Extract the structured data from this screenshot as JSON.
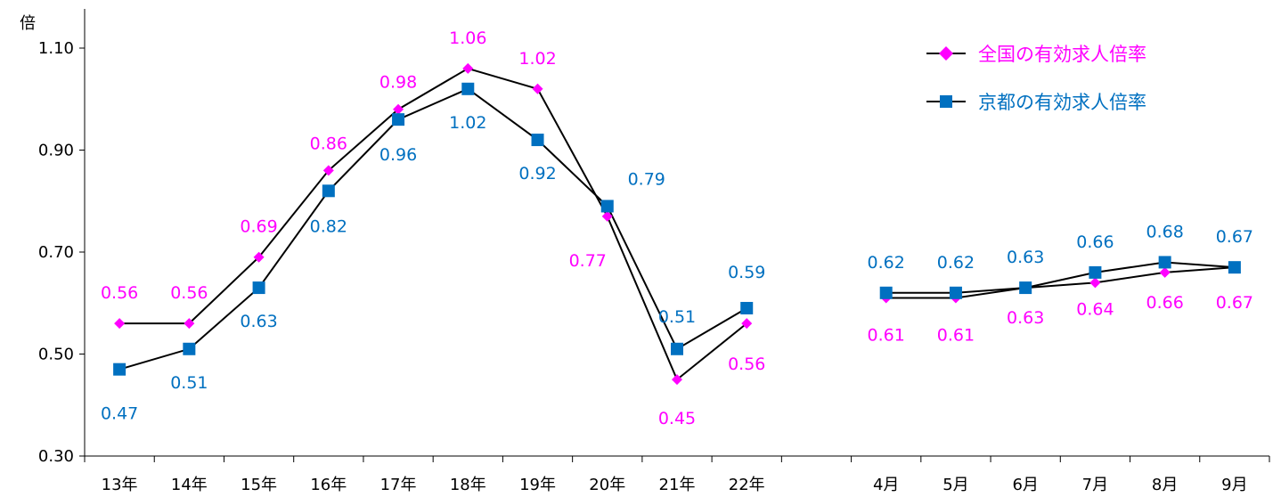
{
  "chart_data": {
    "type": "line",
    "y_unit": "倍",
    "ylim": [
      0.3,
      1.1
    ],
    "y_ticks": [
      "0.30",
      "0.50",
      "0.70",
      "0.90",
      "1.10"
    ],
    "categories": [
      "13年",
      "14年",
      "15年",
      "16年",
      "17年",
      "18年",
      "19年",
      "20年",
      "21年",
      "22年",
      "",
      "4月",
      "5月",
      "6月",
      "7月",
      "8月",
      "9月"
    ],
    "grid": false,
    "legend_position": "top-right",
    "series": [
      {
        "name": "全国の有効求人倍率",
        "color": "#ff00ff",
        "marker": "diamond",
        "values": [
          0.56,
          0.56,
          0.69,
          0.86,
          0.98,
          1.06,
          1.02,
          0.77,
          0.45,
          0.56,
          null,
          0.61,
          0.61,
          0.63,
          0.64,
          0.66,
          0.67
        ],
        "labels": [
          "0.56",
          "0.56",
          "0.69",
          "0.86",
          "0.98",
          "1.06",
          "1.02",
          "0.77",
          "0.45",
          "0.56",
          "",
          "0.61",
          "0.61",
          "0.63",
          "0.64",
          "0.66",
          "0.67"
        ]
      },
      {
        "name": "京都の有効求人倍率",
        "color": "#0070c0",
        "marker": "square",
        "values": [
          0.47,
          0.51,
          0.63,
          0.82,
          0.96,
          1.02,
          0.92,
          0.79,
          0.51,
          0.59,
          null,
          0.62,
          0.62,
          0.63,
          0.66,
          0.68,
          0.67
        ],
        "labels": [
          "0.47",
          "0.51",
          "0.63",
          "0.82",
          "0.96",
          "1.02",
          "0.92",
          "0.79",
          "0.51",
          "0.59",
          "",
          "0.62",
          "0.62",
          "0.63",
          "0.66",
          "0.68",
          "0.67"
        ]
      }
    ]
  }
}
